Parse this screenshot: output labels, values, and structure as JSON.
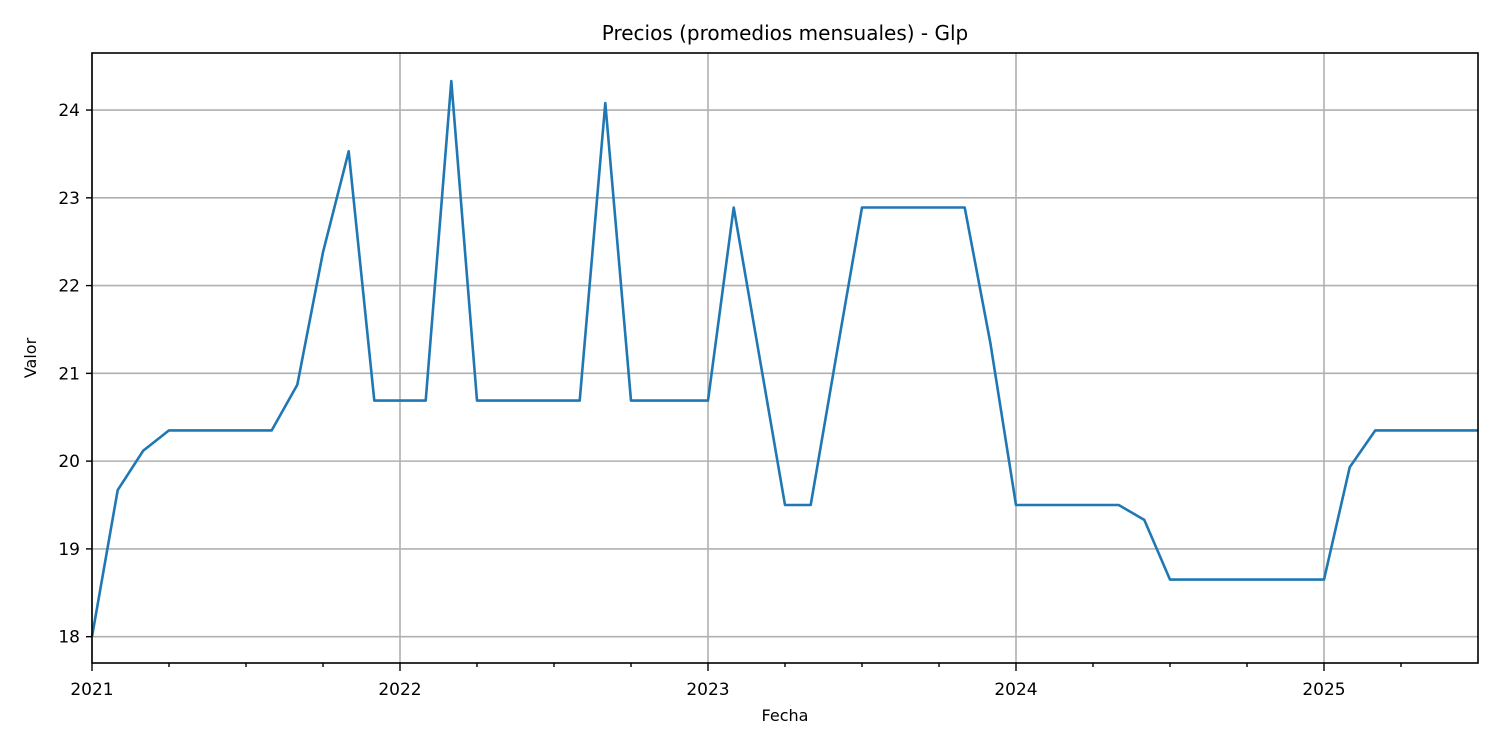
{
  "chart_data": {
    "type": "line",
    "title": "Precios (promedios mensuales) - Glp",
    "xlabel": "Fecha",
    "ylabel": "Valor",
    "grid": true,
    "color": "#1f77b4",
    "x_start": "2021-01",
    "xlim": [
      "2021-01",
      "2025-07"
    ],
    "ylim": [
      17.7,
      24.65
    ],
    "x_major_ticks": [
      {
        "date": "2021-01",
        "label": "2021"
      },
      {
        "date": "2022-01",
        "label": "2022"
      },
      {
        "date": "2023-01",
        "label": "2023"
      },
      {
        "date": "2024-01",
        "label": "2024"
      },
      {
        "date": "2025-01",
        "label": "2025"
      }
    ],
    "x_minor_ticks": [
      "2021-04",
      "2021-07",
      "2021-10",
      "2022-04",
      "2022-07",
      "2022-10",
      "2023-04",
      "2023-07",
      "2023-10",
      "2024-04",
      "2024-07",
      "2024-10",
      "2025-04"
    ],
    "y_ticks": [
      18,
      19,
      20,
      21,
      22,
      23,
      24
    ],
    "series": [
      {
        "x": [
          "2021-01",
          "2021-02",
          "2021-03",
          "2021-04",
          "2021-05",
          "2021-06",
          "2021-07",
          "2021-08",
          "2021-09",
          "2021-10",
          "2021-11",
          "2021-12",
          "2022-01",
          "2022-02",
          "2022-03",
          "2022-04",
          "2022-05",
          "2022-06",
          "2022-07",
          "2022-08",
          "2022-09",
          "2022-10",
          "2022-11",
          "2022-12",
          "2023-01",
          "2023-02",
          "2023-03",
          "2023-04",
          "2023-05",
          "2023-06",
          "2023-07",
          "2023-08",
          "2023-09",
          "2023-10",
          "2023-11",
          "2023-12",
          "2024-01",
          "2024-02",
          "2024-03",
          "2024-04",
          "2024-05",
          "2024-06",
          "2024-07",
          "2024-08",
          "2024-09",
          "2024-10",
          "2024-11",
          "2024-12",
          "2025-01",
          "2025-02",
          "2025-03",
          "2025-04",
          "2025-05",
          "2025-06",
          "2025-07"
        ],
        "values": [
          18.0,
          19.67,
          20.12,
          20.35,
          20.35,
          20.35,
          20.35,
          20.35,
          20.87,
          22.38,
          23.53,
          20.69,
          20.69,
          20.69,
          24.33,
          20.69,
          20.69,
          20.69,
          20.69,
          20.69,
          24.08,
          20.69,
          20.69,
          20.69,
          20.69,
          22.89,
          21.2,
          19.5,
          19.5,
          21.2,
          22.89,
          22.89,
          22.89,
          22.89,
          22.89,
          21.35,
          19.5,
          19.5,
          19.5,
          19.5,
          19.5,
          19.33,
          18.65,
          18.65,
          18.65,
          18.65,
          18.65,
          18.65,
          18.65,
          19.93,
          20.35,
          20.35,
          20.35,
          20.35,
          20.35
        ]
      }
    ]
  }
}
